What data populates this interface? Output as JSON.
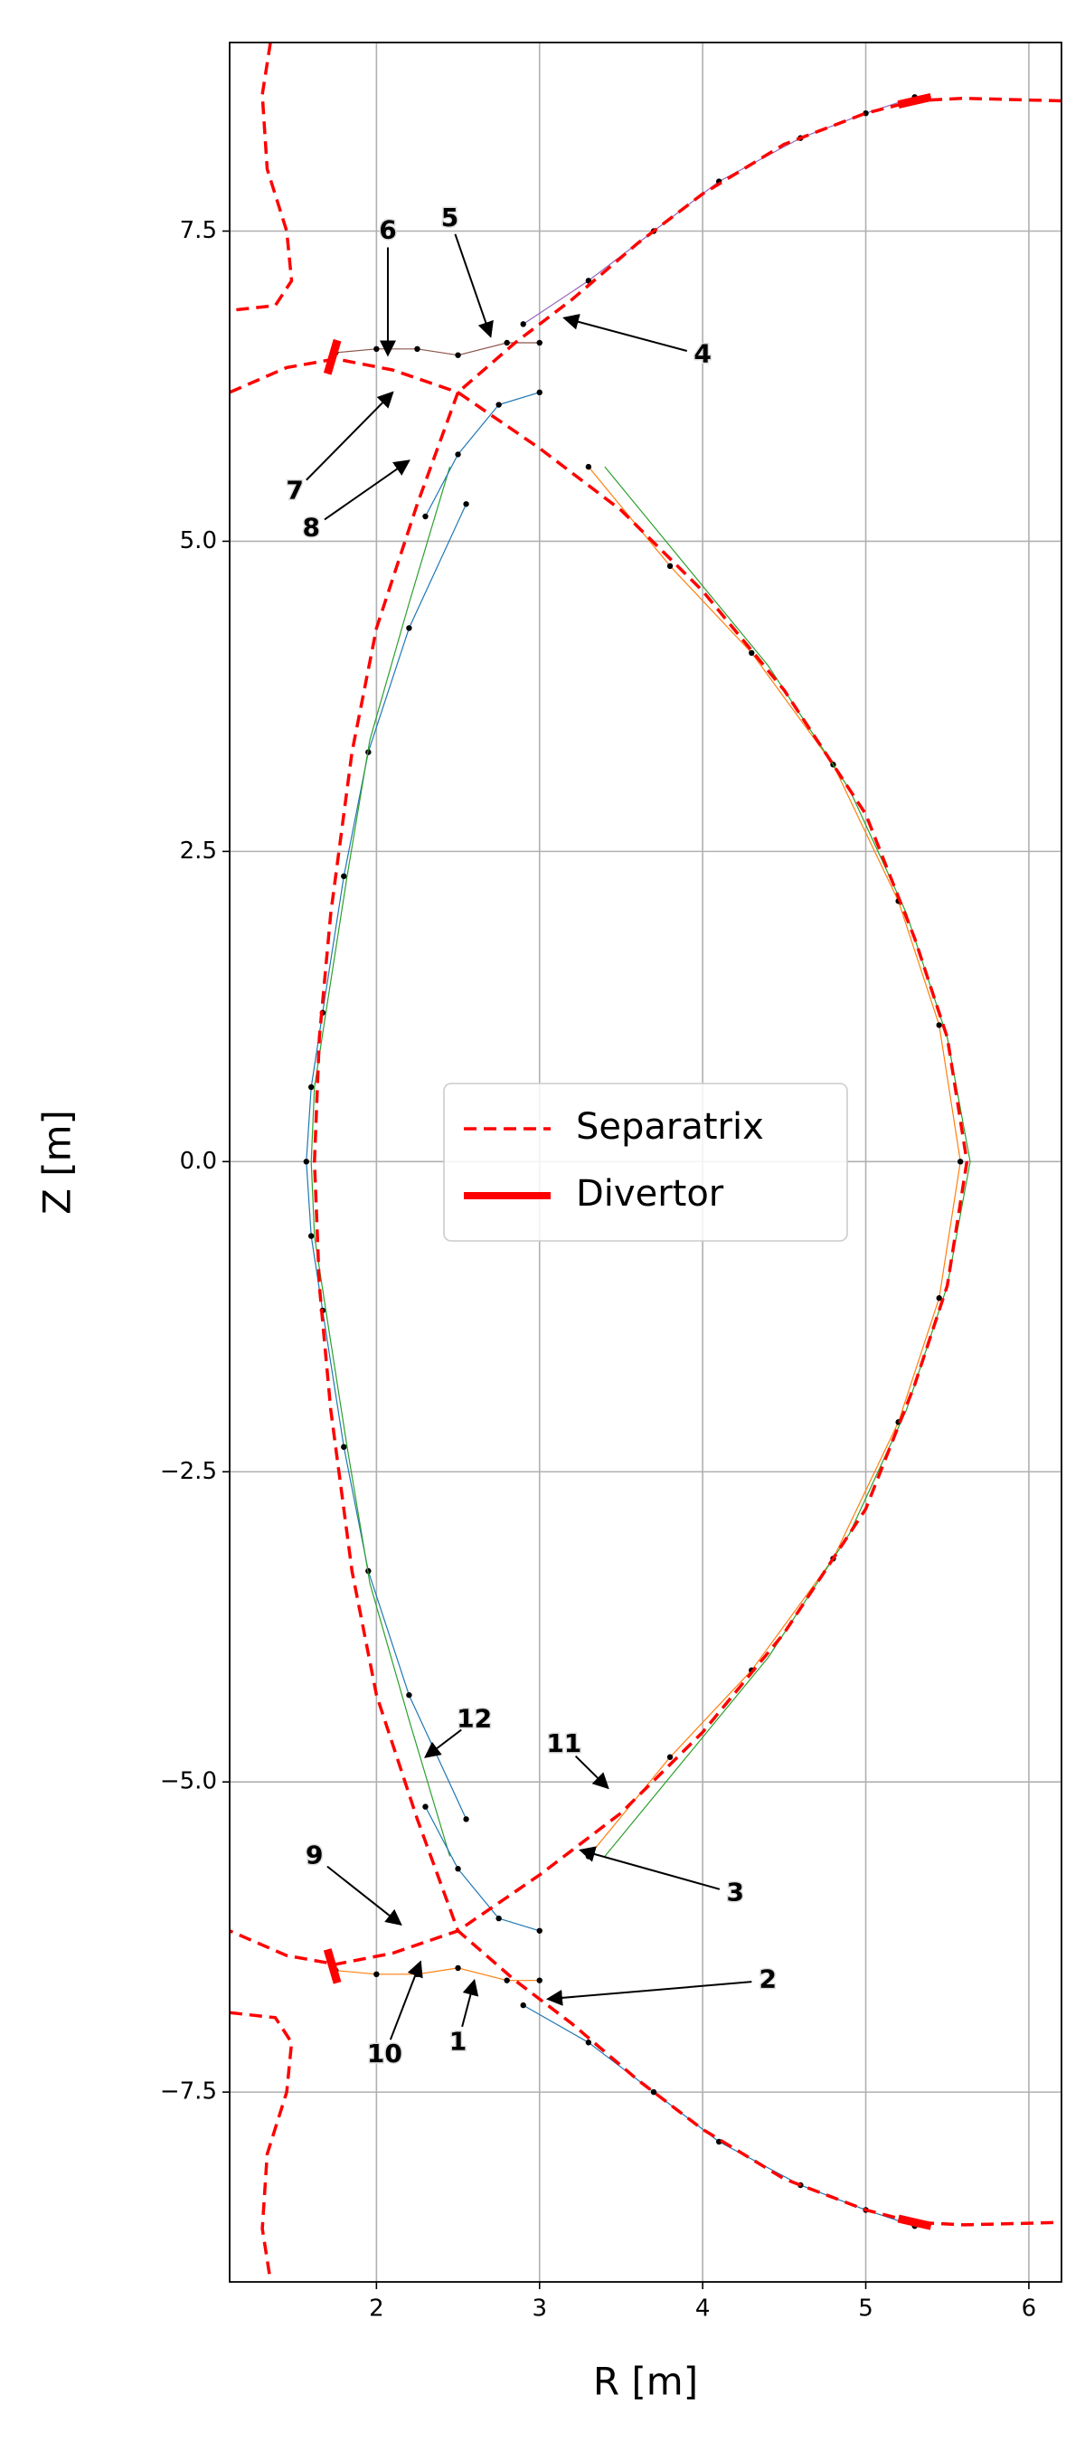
{
  "chart_data": {
    "type": "line",
    "xlabel": "R [m]",
    "ylabel": "Z [m]",
    "xlim": [
      1.1,
      6.2
    ],
    "ylim": [
      -9.03,
      9.02
    ],
    "xticks": [
      2,
      3,
      4,
      5,
      6
    ],
    "yticks": [
      {
        "value": -7.5,
        "label": "−7.5"
      },
      {
        "value": -5,
        "label": "−5.0"
      },
      {
        "value": -2.5,
        "label": "−2.5"
      },
      {
        "value": 0,
        "label": "0.0"
      },
      2.5,
      {
        "value": 5,
        "label": "5.0"
      },
      7.5
    ],
    "grid": true,
    "legend": "center",
    "series": [
      {
        "name": "Separatrix",
        "color": "#ff0000",
        "linestyle": "dashed",
        "x": [
          1.35,
          1.3,
          1.33,
          1.45,
          1.48,
          1.38,
          1.1,
          null,
          1.1,
          1.45,
          1.75,
          2.1,
          2.5,
          2.25,
          2.0,
          1.85,
          1.72,
          1.65,
          1.62,
          1.65,
          1.72,
          1.85,
          2.0,
          2.25,
          2.5,
          2.1,
          1.75,
          1.45,
          1.1,
          null,
          6.2,
          5.6,
          5.3,
          5.0,
          4.5,
          4.0,
          3.6,
          3.2,
          2.85,
          2.5,
          3.0,
          3.5,
          4.0,
          4.5,
          5.0,
          5.3,
          5.5,
          5.62,
          5.5,
          5.3,
          5.0,
          4.5,
          4.0,
          3.5,
          3.0,
          2.5,
          2.85,
          3.2,
          3.6,
          4.0,
          4.5,
          5.0,
          5.3,
          5.6,
          6.2,
          null,
          1.1,
          1.38,
          1.48,
          1.45,
          1.33,
          1.3,
          1.35
        ],
        "values": [
          9.02,
          8.6,
          8.0,
          7.5,
          7.1,
          6.9,
          6.86,
          null,
          6.2,
          6.4,
          6.47,
          6.38,
          6.2,
          5.3,
          4.3,
          3.3,
          2.0,
          1.0,
          0,
          -1.0,
          -2.0,
          -3.3,
          -4.3,
          -5.3,
          -6.2,
          -6.38,
          -6.47,
          -6.4,
          -6.2,
          null,
          8.55,
          8.57,
          8.55,
          8.45,
          8.2,
          7.8,
          7.4,
          6.95,
          6.6,
          6.2,
          5.75,
          5.25,
          4.6,
          3.8,
          2.8,
          1.8,
          1.0,
          0,
          -1.0,
          -1.8,
          -2.8,
          -3.8,
          -4.6,
          -5.25,
          -5.75,
          -6.2,
          -6.6,
          -6.95,
          -7.4,
          -7.8,
          -8.2,
          -8.45,
          -8.55,
          -8.57,
          -8.55,
          null,
          -6.86,
          -6.9,
          -7.1,
          -7.5,
          -8.0,
          -8.6,
          -9.02
        ]
      },
      {
        "name": "Divertor",
        "color": "#ff0000",
        "linestyle": "solid",
        "x": [
          1.7,
          1.76,
          null,
          5.2,
          5.4,
          null,
          1.7,
          1.76,
          null,
          5.2,
          5.4
        ],
        "values": [
          6.35,
          6.62,
          null,
          8.52,
          8.58,
          null,
          -6.35,
          -6.62,
          null,
          -8.52,
          -8.58
        ]
      },
      {
        "color": "#1f77b4",
        "marker": true,
        "x": [
          2.55,
          2.2,
          1.95,
          1.8,
          1.67,
          1.6,
          1.57,
          1.6,
          1.67,
          1.8,
          1.95,
          2.2,
          2.55
        ],
        "values": [
          5.3,
          4.3,
          3.3,
          2.3,
          1.2,
          0.6,
          0,
          -0.6,
          -1.2,
          -2.3,
          -3.3,
          -4.3,
          -5.3
        ]
      },
      {
        "color": "#2ca02c",
        "x": [
          2.45,
          2.2,
          1.96,
          1.82,
          1.69,
          1.62,
          1.6,
          1.62,
          1.69,
          1.82,
          1.96,
          2.2,
          2.45
        ],
        "values": [
          5.6,
          4.5,
          3.4,
          2.3,
          1.2,
          0.6,
          0,
          -0.6,
          -1.2,
          -2.3,
          -3.4,
          -4.5,
          -5.6
        ]
      },
      {
        "color": "#ff7f0e",
        "marker": true,
        "x": [
          3.3,
          3.8,
          4.3,
          4.8,
          5.2,
          5.45,
          5.58,
          5.45,
          5.2,
          4.8,
          4.3,
          3.8,
          3.3
        ],
        "values": [
          5.6,
          4.8,
          4.1,
          3.2,
          2.1,
          1.1,
          0,
          -1.1,
          -2.1,
          -3.2,
          -4.1,
          -4.8,
          -5.6
        ]
      },
      {
        "color": "#2ca02c",
        "x": [
          3.4,
          3.9,
          4.4,
          4.9,
          5.25,
          5.5,
          5.64,
          5.5,
          5.25,
          4.9,
          4.4,
          3.9,
          3.4
        ],
        "values": [
          5.6,
          4.8,
          4.0,
          3.0,
          2.0,
          1.0,
          0,
          -1.0,
          -2.0,
          -3.0,
          -4.0,
          -4.8,
          -5.6
        ]
      },
      {
        "color": "#9467bd",
        "marker": true,
        "x": [
          2.9,
          3.3,
          3.7,
          4.1,
          4.6,
          5.0,
          5.3
        ],
        "values": [
          6.75,
          7.1,
          7.5,
          7.9,
          8.25,
          8.45,
          8.58
        ]
      },
      {
        "color": "#1f77b4",
        "marker": true,
        "x": [
          2.9,
          3.3,
          3.7,
          4.1,
          4.6,
          5.0,
          5.3
        ],
        "values": [
          -6.8,
          -7.1,
          -7.5,
          -7.9,
          -8.25,
          -8.45,
          -8.58
        ]
      },
      {
        "color": "#8c564b",
        "marker": true,
        "x": [
          1.75,
          2.0,
          2.25,
          2.5,
          2.8,
          3.0
        ],
        "values": [
          6.52,
          6.55,
          6.55,
          6.5,
          6.6,
          6.6
        ]
      },
      {
        "color": "#ff7f0e",
        "marker": true,
        "x": [
          1.75,
          2.0,
          2.25,
          2.5,
          2.8,
          3.0
        ],
        "values": [
          -6.52,
          -6.55,
          -6.55,
          -6.5,
          -6.6,
          -6.6
        ]
      },
      {
        "color": "#1f77b4",
        "marker": true,
        "x": [
          2.3,
          2.5,
          2.75,
          3.0
        ],
        "values": [
          5.2,
          5.7,
          6.1,
          6.2
        ]
      },
      {
        "color": "#1f77b4",
        "marker": true,
        "x": [
          2.3,
          2.5,
          2.75,
          3.0
        ],
        "values": [
          -5.2,
          -5.7,
          -6.1,
          -6.2
        ]
      }
    ],
    "annotations": [
      {
        "text": "1",
        "x": 2.5,
        "y": -7.1,
        "xy": [
          2.6,
          -6.6
        ]
      },
      {
        "text": "2",
        "x": 4.4,
        "y": -6.6,
        "xy": [
          3.05,
          -6.75
        ]
      },
      {
        "text": "3",
        "x": 4.2,
        "y": -5.9,
        "xy": [
          3.25,
          -5.55
        ]
      },
      {
        "text": "4",
        "x": 4.0,
        "y": 6.5,
        "xy": [
          3.15,
          6.8
        ]
      },
      {
        "text": "5",
        "x": 2.45,
        "y": 7.6,
        "xy": [
          2.7,
          6.65
        ]
      },
      {
        "text": "6",
        "x": 2.07,
        "y": 7.5,
        "xy": [
          2.07,
          6.5
        ]
      },
      {
        "text": "7",
        "x": 1.5,
        "y": 5.4,
        "xy": [
          2.1,
          6.2
        ]
      },
      {
        "text": "8",
        "x": 1.6,
        "y": 5.1,
        "xy": [
          2.2,
          5.65
        ]
      },
      {
        "text": "9",
        "x": 1.62,
        "y": -5.6,
        "xy": [
          2.15,
          -6.15
        ]
      },
      {
        "text": "10",
        "x": 2.05,
        "y": -7.2,
        "xy": [
          2.27,
          -6.45
        ]
      },
      {
        "text": "11",
        "x": 3.15,
        "y": -4.7,
        "xy": [
          3.42,
          -5.05
        ]
      },
      {
        "text": "12",
        "x": 2.6,
        "y": -4.5,
        "xy": [
          2.3,
          -4.8
        ]
      }
    ]
  }
}
